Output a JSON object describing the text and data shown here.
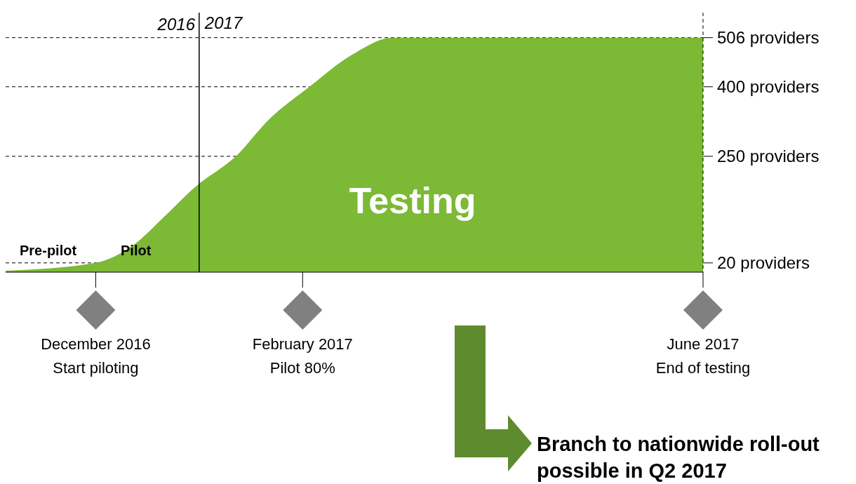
{
  "chart_data": {
    "type": "area",
    "x": [
      "2016-11-04",
      "2016-12-01",
      "2016-12-12",
      "2016-12-22",
      "2016-12-31",
      "2017-01-12",
      "2017-01-22",
      "2017-02-03",
      "2017-02-16",
      "2017-02-28",
      "2017-06-01"
    ],
    "series": [
      {
        "color": "#7cb935",
        "values": [
          3,
          20,
          57,
          123,
          185,
          250,
          330,
          400,
          470,
          506,
          506
        ]
      }
    ],
    "xlim": [
      "2016-11-04",
      "2017-06-01"
    ],
    "xticks": [
      {
        "value": "2016-12-01",
        "label": "December 2016"
      },
      {
        "value": "2017-02-01",
        "label": "February 2017"
      },
      {
        "value": "2017-06-01",
        "label": "June 2017"
      }
    ],
    "ylim": [
      0,
      560
    ],
    "yticks": [
      {
        "value": 20,
        "label": "20 providers"
      },
      {
        "value": 250,
        "label": "250 providers"
      },
      {
        "value": 400,
        "label": "400 providers"
      },
      {
        "value": 506,
        "label": "506 providers"
      }
    ],
    "grid": "y",
    "ref_lines": [
      {
        "axis": "x",
        "value": "2017-01-01",
        "label": "2017"
      }
    ],
    "annotations": [
      "2016",
      "Pre-pilot",
      "Pilot",
      "Testing",
      "Start piloting",
      "Pilot 80%",
      "End of testing",
      "Branch to nationwide roll-out possible in Q2 2017"
    ]
  }
}
